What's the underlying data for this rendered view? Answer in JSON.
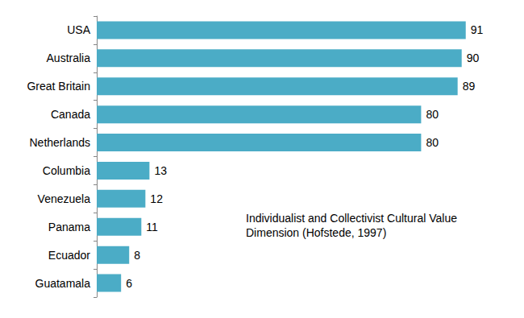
{
  "chart_data": {
    "type": "bar",
    "orientation": "horizontal",
    "annotation": "Individualist and Collectivist Cultural Value Dimension (Hofstede, 1997)",
    "categories": [
      "USA",
      "Australia",
      "Great Britain",
      "Canada",
      "Netherlands",
      "Columbia",
      "Venezuela",
      "Panama",
      "Ecuador",
      "Guatamala"
    ],
    "values": [
      91,
      90,
      89,
      80,
      80,
      13,
      12,
      11,
      8,
      6
    ],
    "color": "#4bacc6",
    "xlim": [
      0,
      100
    ],
    "grid": false,
    "data_labels": true,
    "tick_labels": "y"
  }
}
